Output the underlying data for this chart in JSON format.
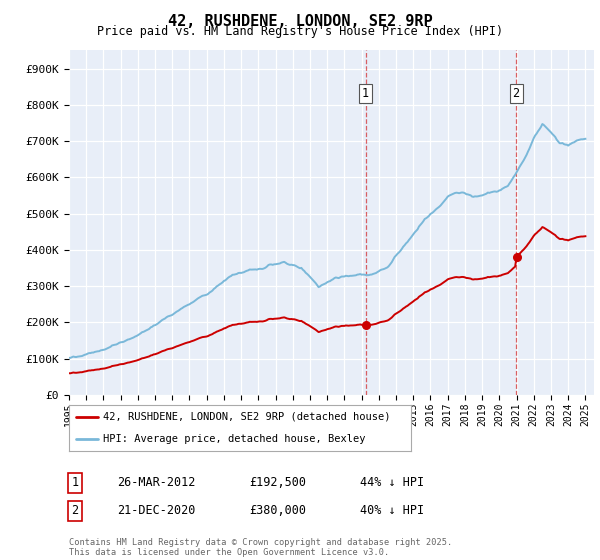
{
  "title": "42, RUSHDENE, LONDON, SE2 9RP",
  "subtitle": "Price paid vs. HM Land Registry's House Price Index (HPI)",
  "legend_line1": "42, RUSHDENE, LONDON, SE2 9RP (detached house)",
  "legend_line2": "HPI: Average price, detached house, Bexley",
  "sale1_label": "1",
  "sale1_date": "26-MAR-2012",
  "sale1_price": "£192,500",
  "sale1_hpi": "44% ↓ HPI",
  "sale2_label": "2",
  "sale2_date": "21-DEC-2020",
  "sale2_price": "£380,000",
  "sale2_hpi": "40% ↓ HPI",
  "footer": "Contains HM Land Registry data © Crown copyright and database right 2025.\nThis data is licensed under the Open Government Licence v3.0.",
  "hpi_color": "#7ab8d9",
  "price_color": "#cc0000",
  "marker1_year": 2012.23,
  "marker2_year": 2020.97,
  "marker1_price": 192500,
  "marker2_price": 380000,
  "ylim_max": 950000,
  "background_color": "#e8eef8"
}
